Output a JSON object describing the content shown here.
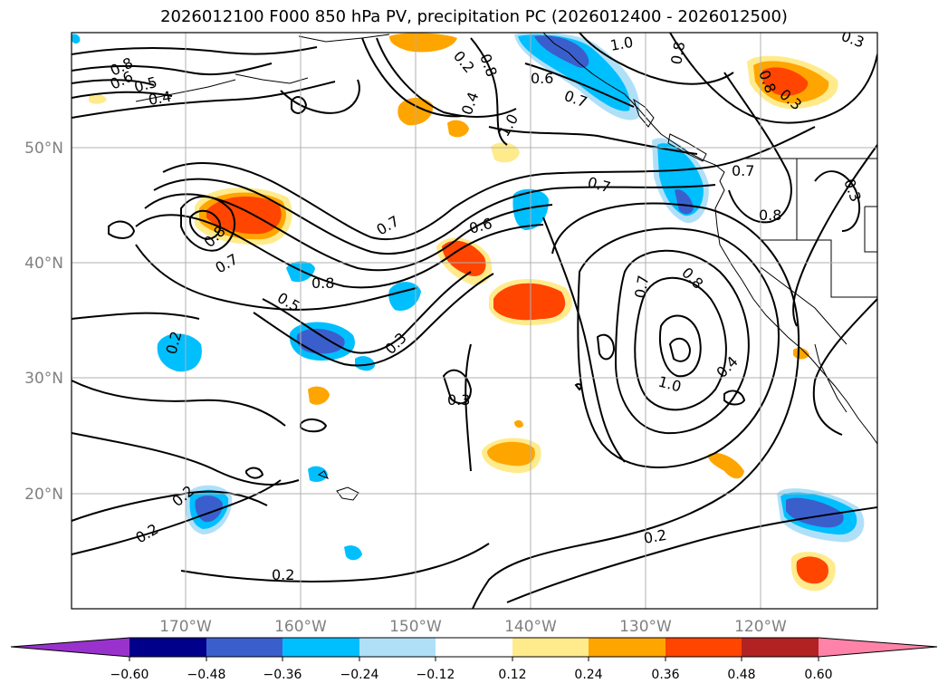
{
  "title": "2026012100 F000 850 hPa PV, precipitation PC (2026012400 - 2026012500)",
  "map": {
    "lat_labels": [
      "50°N",
      "40°N",
      "30°N",
      "20°N"
    ],
    "lon_labels": [
      "170°W",
      "160°W",
      "150°W",
      "140°W",
      "130°W",
      "120°W"
    ],
    "contour_labels": [
      "0.8",
      "0.6",
      "0.5",
      "0.4",
      "0.2",
      "0.8",
      "1.0",
      "0.6",
      "0.7",
      "0.8",
      "0.3",
      "0.3",
      "0.4",
      "1.0",
      "0.7",
      "0.8",
      "0.7",
      "0.8",
      "0.3",
      "0.8",
      "0.7",
      "0.5",
      "0.8",
      "0.7",
      "0.6",
      "0.3",
      "0.7",
      "0.8",
      "0.4",
      "1.0",
      "0.2",
      "0.3",
      "0.2",
      "0.2",
      "0.2",
      "0.2"
    ]
  },
  "colorbar": {
    "ticks": [
      "−0.60",
      "−0.48",
      "−0.36",
      "−0.24",
      "−0.12",
      "0.12",
      "0.24",
      "0.36",
      "0.48",
      "0.60"
    ],
    "colors": [
      "#9932cc",
      "#00008b",
      "#3a5fcd",
      "#00bfff",
      "#b0e0f8",
      "#ffffff",
      "#ffeb8c",
      "#ffa500",
      "#ff4500",
      "#b22222",
      "#ff82a8"
    ]
  }
}
